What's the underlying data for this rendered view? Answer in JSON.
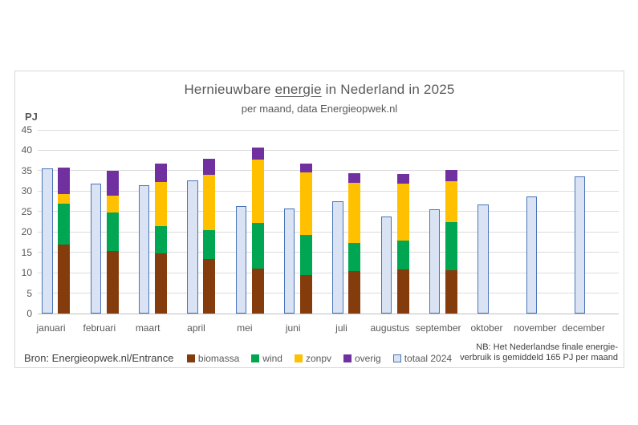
{
  "page": {
    "title_pre": "Hernieuwbare ",
    "title_underlined": "energie",
    "title_post": " in Nederland in 2025",
    "subtitle": "per maand, data Energieopwek.nl",
    "y_axis_unit": "PJ",
    "source": "Bron: Energieopwek.nl/Entrance",
    "note_line1": "NB: Het Nederlandse finale energie-",
    "note_line2": "verbruik is gemiddeld 165 PJ per maand"
  },
  "chart_data": {
    "type": "bar",
    "title": "Hernieuwbare energie in Nederland in 2025",
    "subtitle": "per maand, data Energieopwek.nl",
    "ylabel": "PJ",
    "ylim": [
      0,
      45
    ],
    "yticks": [
      0,
      5,
      10,
      15,
      20,
      25,
      30,
      35,
      40,
      45
    ],
    "grid": true,
    "legend_position": "bottom",
    "categories": [
      "januari",
      "februari",
      "maart",
      "april",
      "mei",
      "juni",
      "juli",
      "augustus",
      "september",
      "oktober",
      "november",
      "december"
    ],
    "stacked_series": [
      {
        "name": "biomassa",
        "color": "#843c0c",
        "values": [
          17.0,
          15.4,
          14.7,
          13.4,
          11.0,
          9.5,
          10.4,
          10.9,
          10.6,
          null,
          null,
          null
        ]
      },
      {
        "name": "wind",
        "color": "#00a651",
        "values": [
          9.9,
          9.3,
          6.8,
          7.1,
          11.2,
          9.8,
          6.9,
          7.0,
          11.8,
          null,
          null,
          null
        ]
      },
      {
        "name": "zonpv",
        "color": "#ffc000",
        "values": [
          2.3,
          4.2,
          10.8,
          13.5,
          15.5,
          15.3,
          14.8,
          14.0,
          10.1,
          null,
          null,
          null
        ]
      },
      {
        "name": "overig",
        "color": "#7030a0",
        "values": [
          6.5,
          6.1,
          4.5,
          3.9,
          3.0,
          2.2,
          2.3,
          2.3,
          2.7,
          null,
          null,
          null
        ]
      }
    ],
    "outline_series": {
      "name": "totaal 2024",
      "fill": "#dae3f3",
      "border": "#4a74b8",
      "values": [
        35.6,
        31.8,
        31.5,
        32.7,
        26.4,
        25.7,
        27.6,
        23.8,
        25.5,
        26.8,
        28.6,
        33.6
      ]
    },
    "colors": {
      "grid": "#dcdcdc",
      "axis": "#bfbfbf",
      "text": "#595959",
      "box_border": "#d9d9d9"
    }
  }
}
